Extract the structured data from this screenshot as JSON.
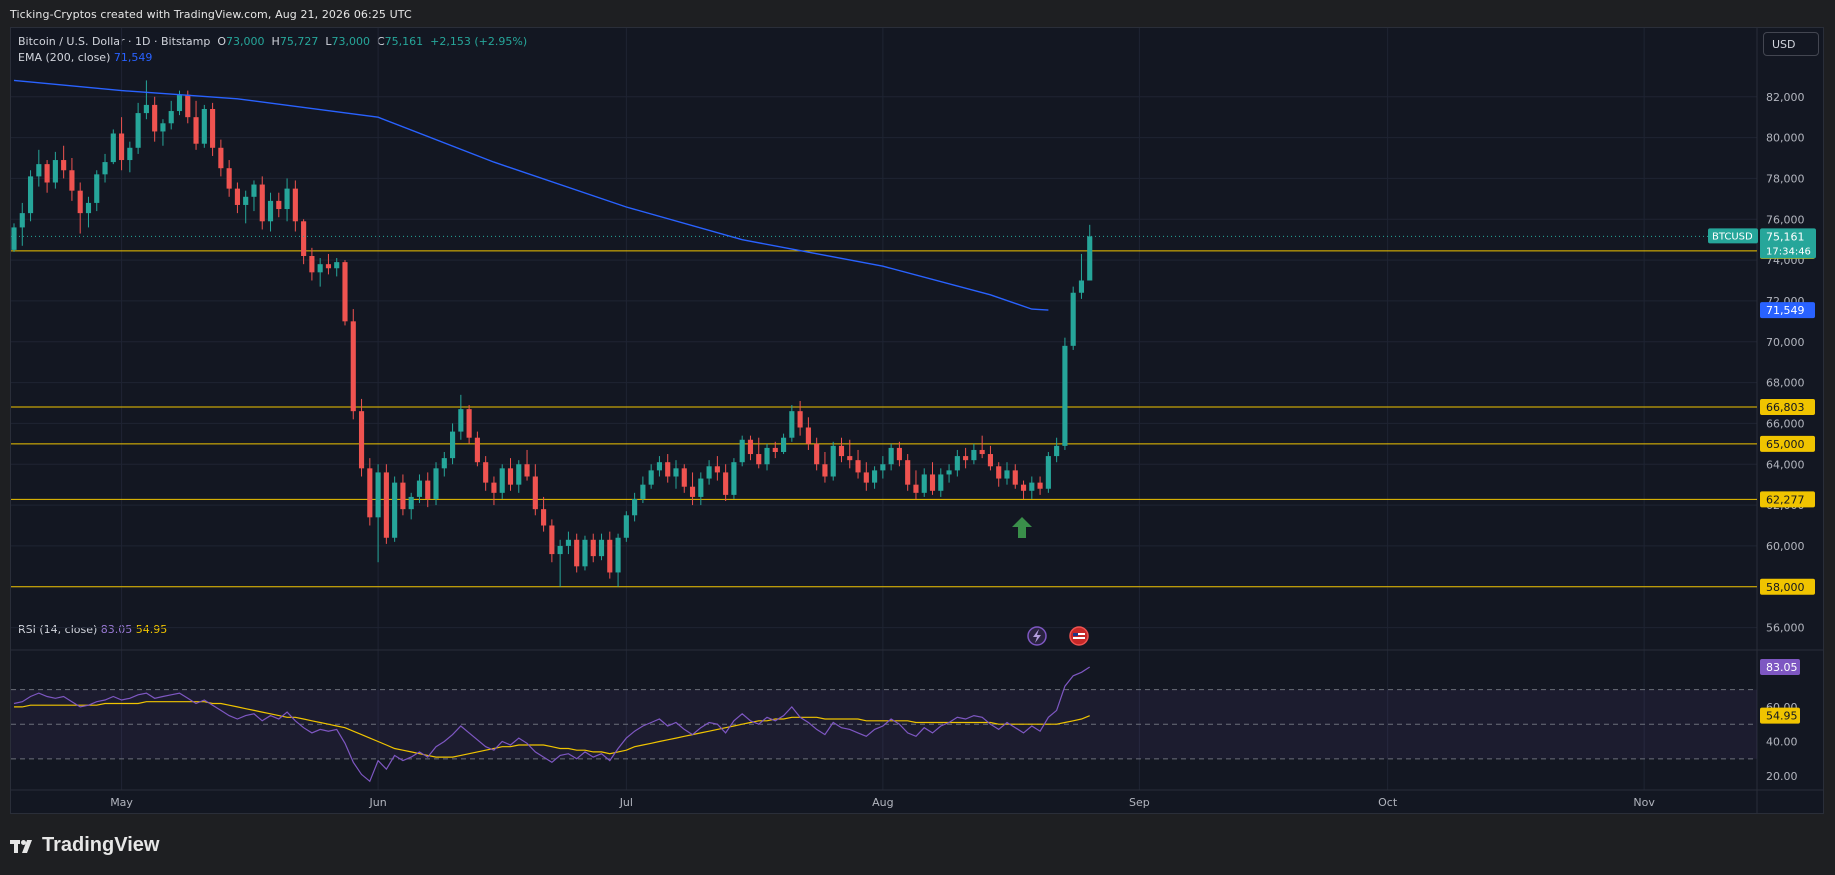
{
  "header": {
    "credit": "Ticking-Cryptos created with TradingView.com, Aug 21, 2026 06:25 UTC"
  },
  "legend": {
    "symbol": "Bitcoin / U.S. Dollar · 1D · Bitstamp",
    "o_label": "O",
    "o_value": "73,000",
    "h_label": "H",
    "h_value": "75,727",
    "l_label": "L",
    "l_value": "73,000",
    "c_label": "C",
    "c_value": "75,161",
    "change": "+2,153 (+2.95%)",
    "ema_label": "EMA (200, close)",
    "ema_value": "71,549",
    "rsi_label": "RSI (14, close)",
    "rsi_value": "83.05",
    "rsi_ma_value": "54.95"
  },
  "currency_button": "USD",
  "footer": {
    "brand": "TradingView"
  },
  "colors": {
    "up": "#26a69a",
    "down": "#ef5350",
    "ema": "#2962ff",
    "level": "#f0c400",
    "rsi": "#7e57c2",
    "rsi_ma": "#f0c400",
    "bg": "#131722"
  },
  "chart_data": {
    "type": "candlestick",
    "symbol": "BTCUSD",
    "price_axis_ticks": [
      "82,000",
      "80,000",
      "78,000",
      "76,000",
      "74,000",
      "72,000",
      "70,000",
      "68,000",
      "66,000",
      "64,000",
      "62,000",
      "60,000",
      "58,000",
      "56,000"
    ],
    "price_tick_values": [
      82000,
      80000,
      78000,
      76000,
      74000,
      72000,
      70000,
      68000,
      66000,
      64000,
      62000,
      60000,
      58000,
      56000
    ],
    "price_range": [
      55000,
      83800
    ],
    "time_axis_labels": [
      "May",
      "Jun",
      "Jul",
      "Aug",
      "Sep",
      "Oct",
      "Nov"
    ],
    "time_axis_dates": [
      "2026-05-01",
      "2026-06-01",
      "2026-07-01",
      "2026-08-01",
      "2026-09-01",
      "2026-10-01",
      "2026-11-01"
    ],
    "first_date": "2026-04-18",
    "date_range": [
      "2026-04-18",
      "2026-11-15"
    ],
    "last_price_label": "BTCUSD",
    "last_price": "75,161",
    "countdown": "17:34:46",
    "horizontal_levels": [
      {
        "value": 74450,
        "label": "74,450"
      },
      {
        "value": 66803,
        "label": "66,803"
      },
      {
        "value": 65000,
        "label": "65,000"
      },
      {
        "value": 62277,
        "label": "62,277"
      },
      {
        "value": 58000,
        "label": "58,000"
      }
    ],
    "ema_label_value": "71,549",
    "ema_last": 71549,
    "candles": [
      [
        74500,
        75800,
        74400,
        75600
      ],
      [
        75600,
        76800,
        74700,
        76300
      ],
      [
        76300,
        78400,
        75900,
        78100
      ],
      [
        78100,
        79400,
        77600,
        78700
      ],
      [
        78700,
        78900,
        77300,
        77800
      ],
      [
        77800,
        79300,
        77500,
        78900
      ],
      [
        78900,
        79600,
        78000,
        78400
      ],
      [
        78400,
        79000,
        76900,
        77400
      ],
      [
        77400,
        77800,
        75300,
        76300
      ],
      [
        76300,
        77100,
        75600,
        76800
      ],
      [
        76800,
        78400,
        76400,
        78200
      ],
      [
        78200,
        79200,
        77800,
        78800
      ],
      [
        78800,
        80400,
        78700,
        80200
      ],
      [
        80200,
        81000,
        78400,
        78900
      ],
      [
        78900,
        79800,
        78300,
        79500
      ],
      [
        79500,
        81700,
        79200,
        81200
      ],
      [
        81200,
        82800,
        80900,
        81600
      ],
      [
        81600,
        82000,
        79800,
        80300
      ],
      [
        80300,
        80900,
        79600,
        80700
      ],
      [
        80700,
        81800,
        80400,
        81300
      ],
      [
        81300,
        82300,
        81100,
        82100
      ],
      [
        82100,
        82300,
        80700,
        81000
      ],
      [
        81000,
        81800,
        79400,
        79700
      ],
      [
        79700,
        81600,
        79500,
        81400
      ],
      [
        81400,
        81700,
        79100,
        79500
      ],
      [
        79500,
        79900,
        78100,
        78500
      ],
      [
        78500,
        78900,
        77100,
        77500
      ],
      [
        77500,
        77800,
        76300,
        76700
      ],
      [
        76700,
        77400,
        75800,
        77100
      ],
      [
        77100,
        77900,
        76400,
        77700
      ],
      [
        77700,
        78100,
        75500,
        75900
      ],
      [
        75900,
        77300,
        75400,
        76900
      ],
      [
        76900,
        77300,
        76100,
        76500
      ],
      [
        76500,
        78000,
        75900,
        77500
      ],
      [
        77500,
        77900,
        75400,
        75900
      ],
      [
        75900,
        76000,
        73800,
        74200
      ],
      [
        74200,
        74600,
        73000,
        73400
      ],
      [
        73400,
        74100,
        72700,
        73800
      ],
      [
        73800,
        74300,
        73300,
        73600
      ],
      [
        73600,
        74100,
        73200,
        73900
      ],
      [
        73900,
        74000,
        70800,
        71000
      ],
      [
        71000,
        71600,
        66200,
        66600
      ],
      [
        66600,
        67200,
        63400,
        63800
      ],
      [
        63800,
        64300,
        61000,
        61400
      ],
      [
        61400,
        64000,
        59200,
        63600
      ],
      [
        63600,
        64000,
        60100,
        60400
      ],
      [
        60400,
        63400,
        60200,
        63100
      ],
      [
        63100,
        63500,
        61500,
        61800
      ],
      [
        61800,
        62600,
        61300,
        62400
      ],
      [
        62400,
        63500,
        62100,
        63200
      ],
      [
        63200,
        63600,
        61900,
        62300
      ],
      [
        62300,
        64100,
        62000,
        63800
      ],
      [
        63800,
        64600,
        63400,
        64300
      ],
      [
        64300,
        66000,
        64000,
        65600
      ],
      [
        65600,
        67400,
        65200,
        66700
      ],
      [
        66700,
        66900,
        65000,
        65300
      ],
      [
        65300,
        65600,
        63900,
        64100
      ],
      [
        64100,
        64400,
        62700,
        63100
      ],
      [
        63100,
        63400,
        62000,
        62600
      ],
      [
        62600,
        64000,
        62300,
        63800
      ],
      [
        63800,
        64300,
        62700,
        63000
      ],
      [
        63000,
        64200,
        62600,
        64000
      ],
      [
        64000,
        64700,
        63200,
        63400
      ],
      [
        63400,
        64000,
        61500,
        61800
      ],
      [
        61800,
        62400,
        60700,
        61000
      ],
      [
        61000,
        61300,
        59200,
        59600
      ],
      [
        59600,
        60300,
        58000,
        60000
      ],
      [
        60000,
        60700,
        59600,
        60300
      ],
      [
        60300,
        60600,
        58700,
        59000
      ],
      [
        59000,
        60500,
        58800,
        60300
      ],
      [
        60300,
        60600,
        59200,
        59500
      ],
      [
        59500,
        60600,
        59300,
        60300
      ],
      [
        60300,
        60700,
        58400,
        58700
      ],
      [
        58700,
        60600,
        58000,
        60400
      ],
      [
        60400,
        61700,
        60200,
        61500
      ],
      [
        61500,
        62600,
        61200,
        62300
      ],
      [
        62300,
        63400,
        62100,
        63000
      ],
      [
        63000,
        64000,
        62800,
        63700
      ],
      [
        63700,
        64400,
        63400,
        64100
      ],
      [
        64100,
        64500,
        63100,
        63400
      ],
      [
        63400,
        64200,
        62800,
        63800
      ],
      [
        63800,
        64000,
        62600,
        62900
      ],
      [
        62900,
        63600,
        62000,
        62400
      ],
      [
        62400,
        63600,
        62000,
        63300
      ],
      [
        63300,
        64200,
        63000,
        63900
      ],
      [
        63900,
        64400,
        63200,
        63600
      ],
      [
        63600,
        64000,
        62200,
        62500
      ],
      [
        62500,
        64300,
        62300,
        64100
      ],
      [
        64100,
        65400,
        63900,
        65200
      ],
      [
        65200,
        65400,
        64200,
        64500
      ],
      [
        64500,
        65300,
        63800,
        64000
      ],
      [
        64000,
        65000,
        63700,
        64800
      ],
      [
        64800,
        65100,
        64300,
        64600
      ],
      [
        64600,
        65500,
        64500,
        65300
      ],
      [
        65300,
        66900,
        65100,
        66600
      ],
      [
        66600,
        67100,
        65400,
        65800
      ],
      [
        65800,
        66300,
        64700,
        65000
      ],
      [
        65000,
        65300,
        63700,
        64000
      ],
      [
        64000,
        64600,
        63100,
        63400
      ],
      [
        63400,
        65100,
        63200,
        64900
      ],
      [
        64900,
        65300,
        64100,
        64400
      ],
      [
        64400,
        65200,
        63800,
        64200
      ],
      [
        64200,
        64700,
        63300,
        63600
      ],
      [
        63600,
        64100,
        62700,
        63100
      ],
      [
        63100,
        63900,
        62800,
        63700
      ],
      [
        63700,
        64400,
        63300,
        64000
      ],
      [
        64000,
        65000,
        63700,
        64800
      ],
      [
        64800,
        65100,
        63900,
        64200
      ],
      [
        64200,
        64500,
        62700,
        63000
      ],
      [
        63000,
        63700,
        62300,
        62600
      ],
      [
        62600,
        63800,
        62400,
        63500
      ],
      [
        63500,
        64100,
        62500,
        62700
      ],
      [
        62700,
        63800,
        62400,
        63500
      ],
      [
        63500,
        64000,
        63100,
        63700
      ],
      [
        63700,
        64700,
        63400,
        64400
      ],
      [
        64400,
        64800,
        63800,
        64200
      ],
      [
        64200,
        65000,
        64000,
        64700
      ],
      [
        64700,
        65400,
        64300,
        64500
      ],
      [
        64500,
        64900,
        63700,
        63900
      ],
      [
        63900,
        64100,
        62900,
        63300
      ],
      [
        63300,
        64100,
        63000,
        63700
      ],
      [
        63700,
        64000,
        62800,
        63000
      ],
      [
        63000,
        63200,
        62300,
        62700
      ],
      [
        62700,
        63400,
        62300,
        63100
      ],
      [
        63100,
        63400,
        62500,
        62800
      ],
      [
        62800,
        64600,
        62600,
        64400
      ],
      [
        64400,
        65300,
        64100,
        64900
      ],
      [
        64900,
        70200,
        64700,
        69800
      ],
      [
        69800,
        72700,
        69600,
        72400
      ],
      [
        72400,
        74300,
        72100,
        73000
      ],
      [
        73000,
        75727,
        73000,
        75161
      ]
    ],
    "ema_points": [
      [
        "2026-04-18",
        82800
      ],
      [
        "2026-05-01",
        82300
      ],
      [
        "2026-05-15",
        81900
      ],
      [
        "2026-06-01",
        81000
      ],
      [
        "2026-06-15",
        78800
      ],
      [
        "2026-07-01",
        76600
      ],
      [
        "2026-07-15",
        75000
      ],
      [
        "2026-08-01",
        73700
      ],
      [
        "2026-08-14",
        72300
      ],
      [
        "2026-08-19",
        71600
      ],
      [
        "2026-08-21",
        71549
      ]
    ],
    "rsi": {
      "label": "RSI (14, close)",
      "value": "83.05",
      "ma_value": "54.95",
      "axis_ticks": [
        "60.00",
        "40.00",
        "20.00"
      ],
      "tick_values": [
        60,
        40,
        20
      ],
      "bands": [
        30,
        50,
        70
      ],
      "range": [
        12,
        90
      ],
      "values": [
        62,
        63,
        66,
        68,
        66,
        65,
        66,
        63,
        60,
        61,
        63,
        64,
        66,
        64,
        65,
        67,
        68,
        65,
        66,
        67,
        68,
        65,
        62,
        64,
        61,
        58,
        55,
        53,
        55,
        56,
        52,
        55,
        53,
        57,
        52,
        48,
        45,
        47,
        46,
        47,
        39,
        28,
        21,
        17,
        29,
        24,
        32,
        29,
        31,
        34,
        31,
        37,
        40,
        44,
        49,
        45,
        41,
        37,
        35,
        40,
        38,
        42,
        39,
        34,
        31,
        28,
        32,
        33,
        30,
        34,
        31,
        33,
        29,
        36,
        42,
        46,
        49,
        51,
        53,
        49,
        51,
        47,
        44,
        48,
        51,
        50,
        45,
        52,
        56,
        52,
        50,
        54,
        52,
        55,
        60,
        54,
        51,
        47,
        44,
        51,
        48,
        47,
        45,
        43,
        47,
        49,
        53,
        50,
        45,
        43,
        48,
        45,
        49,
        51,
        54,
        53,
        55,
        54,
        50,
        47,
        51,
        48,
        45,
        49,
        46,
        54,
        58,
        72,
        78,
        80,
        83.05
      ],
      "ma_values": [
        60,
        60,
        61,
        61,
        61,
        61,
        61,
        61,
        61,
        61,
        61,
        62,
        62,
        62,
        62,
        62,
        63,
        63,
        63,
        63,
        63,
        63,
        63,
        63,
        62,
        62,
        61,
        60,
        59,
        58,
        57,
        56,
        55,
        54,
        54,
        53,
        52,
        51,
        50,
        49,
        48,
        46,
        44,
        42,
        40,
        38,
        36,
        35,
        34,
        33,
        32,
        31,
        31,
        31,
        32,
        33,
        34,
        35,
        36,
        37,
        37,
        38,
        38,
        38,
        38,
        37,
        36,
        36,
        35,
        35,
        34,
        34,
        33,
        34,
        35,
        37,
        38,
        39,
        40,
        41,
        42,
        43,
        44,
        45,
        46,
        47,
        48,
        49,
        50,
        51,
        52,
        52,
        53,
        53,
        54,
        54,
        54,
        54,
        53,
        53,
        53,
        53,
        53,
        52,
        52,
        52,
        52,
        52,
        52,
        51,
        51,
        51,
        51,
        51,
        51,
        51,
        51,
        51,
        51,
        50,
        50,
        50,
        50,
        50,
        50,
        50,
        50,
        51,
        52,
        53,
        54.95
      ]
    }
  }
}
